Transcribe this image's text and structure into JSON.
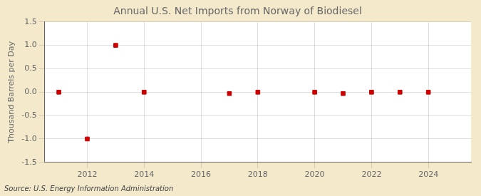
{
  "chart_data": {
    "type": "scatter",
    "title": "Annual U.S. Net Imports from Norway of Biodiesel",
    "ylabel": "Thousand Barrels per Day",
    "annotations": [
      "Source: U.S. Energy Information Administration"
    ],
    "x": [
      2011,
      2012,
      2013,
      2014,
      2017,
      2018,
      2020,
      2021,
      2022,
      2023,
      2024
    ],
    "values": [
      0.0,
      -1.0,
      1.0,
      0.0,
      -0.03,
      0.0,
      0.0,
      -0.03,
      0.0,
      0.0,
      0.0
    ],
    "color": "#cc0000",
    "marker": "square",
    "xlim": [
      2010.5,
      2025.5
    ],
    "ylim": [
      -1.5,
      1.5
    ],
    "xticks": [
      2012,
      2014,
      2016,
      2018,
      2020,
      2022,
      2024
    ],
    "yticks": [
      -1.5,
      {
        "value": -1.0,
        "label": "-1.0"
      },
      -0.5,
      {
        "value": 0.0,
        "label": "0.0"
      },
      0.5,
      {
        "value": 1.0,
        "label": "1.0"
      },
      1.5
    ],
    "grid": true
  }
}
